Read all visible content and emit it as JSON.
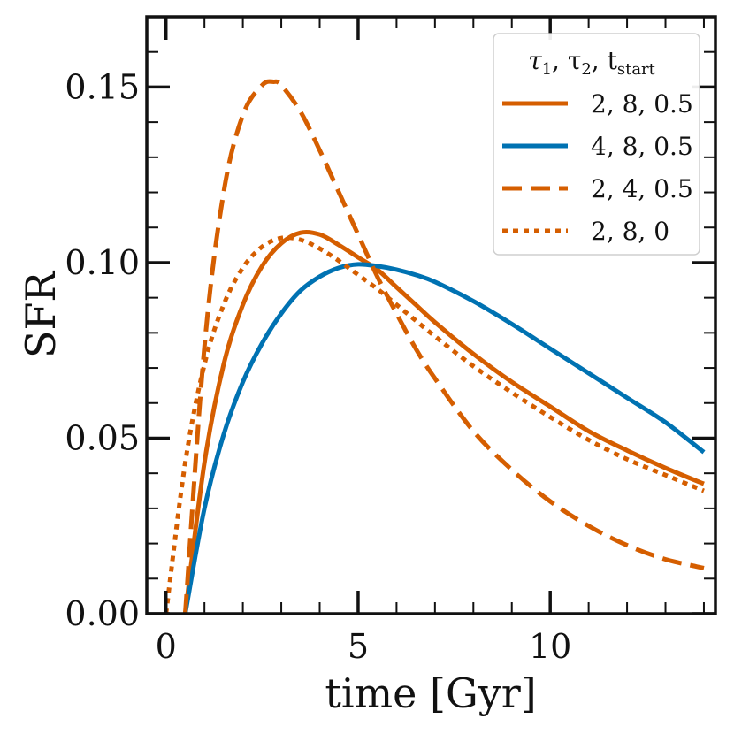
{
  "chart_data": {
    "type": "line",
    "xlabel": "time [Gyr]",
    "ylabel": "SFR",
    "xlim": [
      -0.5,
      14.3
    ],
    "ylim": [
      0.0,
      0.17
    ],
    "x_ticks": [
      0,
      5,
      10
    ],
    "x_tick_labels": [
      "0",
      "5",
      "10"
    ],
    "y_ticks": [
      0.0,
      0.05,
      0.1,
      0.15
    ],
    "y_tick_labels": [
      "0.00",
      "0.05",
      "0.10",
      "0.15"
    ],
    "grid": false,
    "legend": {
      "placement": "top-right",
      "title_parts": [
        "τ",
        "1",
        ", τ",
        "2",
        ", t",
        "start"
      ]
    },
    "series": [
      {
        "name": "2, 8, 0.5",
        "color": "#d55e00",
        "style": "solid",
        "x": [
          0.5,
          1.0,
          1.5,
          2.0,
          2.5,
          3.0,
          3.5,
          4.0,
          4.5,
          5.0,
          5.5,
          6.0,
          6.5,
          7.0,
          8.0,
          9.0,
          10.0,
          11.0,
          12.0,
          13.0,
          14.0
        ],
        "y": [
          0.0,
          0.043,
          0.071,
          0.088,
          0.099,
          0.1055,
          0.1085,
          0.108,
          0.105,
          0.1015,
          0.098,
          0.093,
          0.088,
          0.083,
          0.074,
          0.066,
          0.059,
          0.052,
          0.0465,
          0.0415,
          0.037
        ]
      },
      {
        "name": "4, 8, 0.5",
        "color": "#0072b2",
        "style": "solid",
        "x": [
          0.5,
          1.0,
          1.5,
          2.0,
          2.5,
          3.0,
          3.5,
          4.0,
          4.5,
          5.0,
          5.5,
          6.0,
          6.5,
          7.0,
          8.0,
          9.0,
          10.0,
          11.0,
          12.0,
          13.0,
          14.0
        ],
        "y": [
          0.0,
          0.03,
          0.051,
          0.066,
          0.077,
          0.0855,
          0.092,
          0.096,
          0.0985,
          0.0995,
          0.099,
          0.098,
          0.0965,
          0.0945,
          0.089,
          0.0825,
          0.0755,
          0.0685,
          0.0615,
          0.0545,
          0.046
        ]
      },
      {
        "name": "2, 4, 0.5",
        "color": "#d55e00",
        "style": "dashed",
        "x": [
          0.5,
          1.0,
          1.5,
          2.0,
          2.5,
          2.8,
          3.0,
          3.5,
          4.0,
          4.5,
          5.0,
          5.5,
          6.0,
          6.5,
          7.0,
          8.0,
          9.0,
          10.0,
          11.0,
          12.0,
          13.0,
          14.0
        ],
        "y": [
          0.0,
          0.076,
          0.12,
          0.142,
          0.1505,
          0.1515,
          0.1505,
          0.143,
          0.132,
          0.12,
          0.108,
          0.096,
          0.0855,
          0.0755,
          0.067,
          0.052,
          0.041,
          0.032,
          0.025,
          0.0195,
          0.0155,
          0.013
        ]
      },
      {
        "name": "2, 8, 0",
        "color": "#d55e00",
        "style": "dotted",
        "x": [
          0.0,
          0.5,
          1.0,
          1.5,
          2.0,
          2.5,
          3.0,
          3.5,
          4.0,
          4.5,
          5.0,
          5.5,
          6.0,
          6.5,
          7.0,
          8.0,
          9.0,
          10.0,
          11.0,
          12.0,
          13.0,
          14.0
        ],
        "y": [
          0.0,
          0.043,
          0.071,
          0.088,
          0.0985,
          0.1045,
          0.107,
          0.1065,
          0.104,
          0.1005,
          0.0965,
          0.0925,
          0.088,
          0.0835,
          0.079,
          0.0705,
          0.063,
          0.056,
          0.0495,
          0.044,
          0.0395,
          0.035
        ]
      }
    ]
  }
}
